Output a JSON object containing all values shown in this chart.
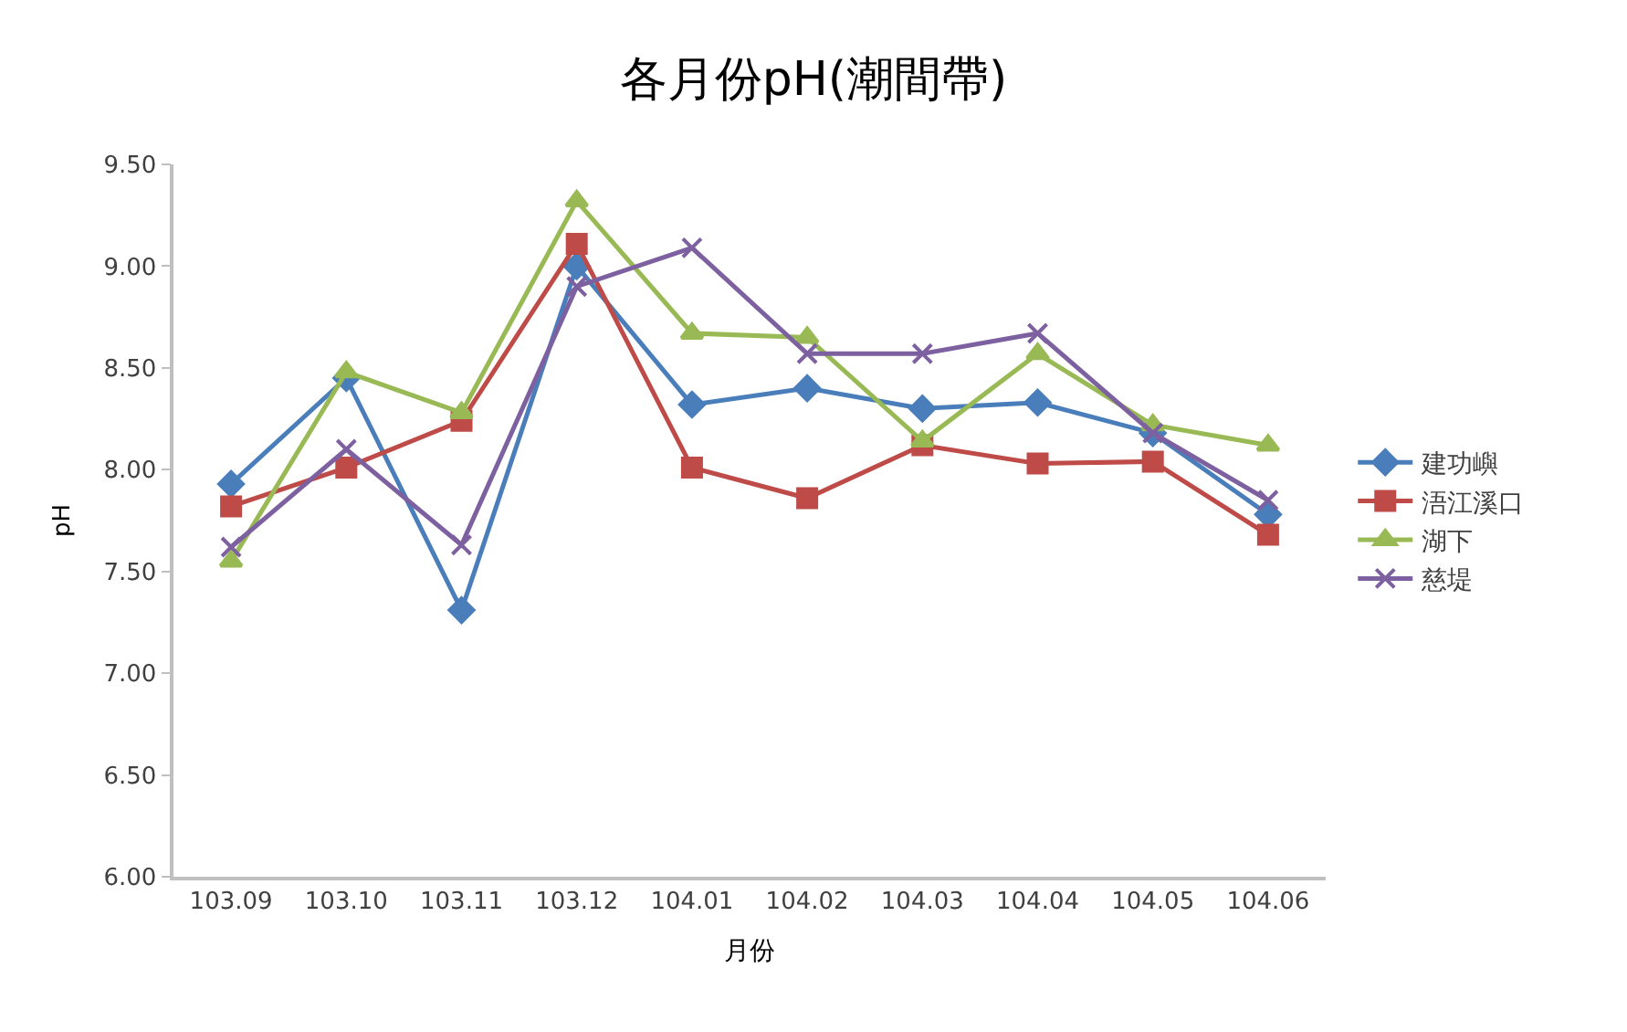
{
  "chart_data": {
    "type": "line",
    "title": "各月份pH(潮間帶)",
    "xlabel": "月份",
    "ylabel": "pH",
    "categories": [
      "103.09",
      "103.10",
      "103.11",
      "103.12",
      "104.01",
      "104.02",
      "104.03",
      "104.04",
      "104.05",
      "104.06"
    ],
    "series": [
      {
        "name": "建功嶼",
        "color": "#4a7ebb",
        "marker": "diamond",
        "values": [
          7.93,
          8.45,
          7.31,
          9.0,
          8.32,
          8.4,
          8.3,
          8.33,
          8.18,
          7.78
        ]
      },
      {
        "name": "浯江溪口",
        "color": "#be4b48",
        "marker": "square",
        "values": [
          7.82,
          8.01,
          8.24,
          9.11,
          8.01,
          7.86,
          8.12,
          8.03,
          8.04,
          7.68
        ]
      },
      {
        "name": "湖下",
        "color": "#98b954",
        "marker": "triangle",
        "values": [
          7.55,
          8.48,
          8.28,
          9.32,
          8.67,
          8.65,
          8.14,
          8.57,
          8.22,
          8.12
        ]
      },
      {
        "name": "慈堤",
        "color": "#7d60a0",
        "marker": "cross",
        "values": [
          7.62,
          8.1,
          7.63,
          8.9,
          9.09,
          8.57,
          8.57,
          8.67,
          8.18,
          7.85
        ]
      }
    ],
    "ylim": [
      6.0,
      9.5
    ],
    "yticks": [
      {
        "value": 6.0,
        "label": "6.00"
      },
      {
        "value": 6.5,
        "label": "6.50"
      },
      {
        "value": 7.0,
        "label": "7.00"
      },
      {
        "value": 7.5,
        "label": "7.50"
      },
      {
        "value": 8.0,
        "label": "8.00"
      },
      {
        "value": 8.5,
        "label": "8.50"
      },
      {
        "value": 9.0,
        "label": "9.00"
      },
      {
        "value": 9.5,
        "label": "9.50"
      }
    ],
    "legend": "right",
    "line_style": "solid"
  }
}
